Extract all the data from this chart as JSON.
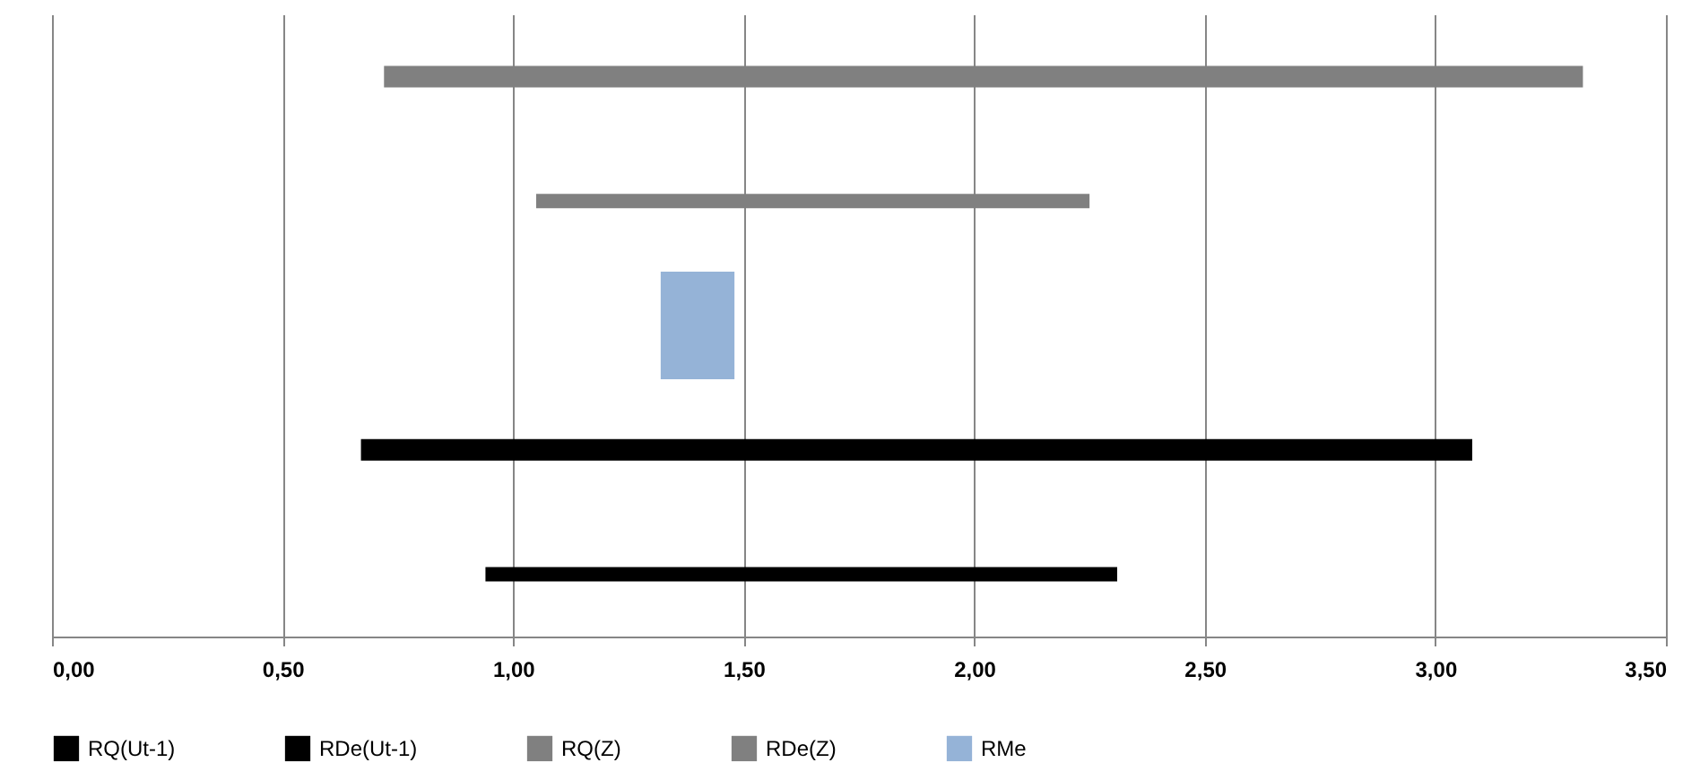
{
  "chart_data": {
    "type": "bar",
    "orientation": "horizontal",
    "categories": [
      null,
      null,
      null,
      null,
      null
    ],
    "series": [
      {
        "name": "RQ(Ut-1)",
        "color": "#000000",
        "values": [
          null,
          null,
          null,
          null,
          1.37
        ],
        "base": [
          null,
          null,
          null,
          null,
          0.94
        ]
      },
      {
        "name": "RDe(Ut-1)",
        "color": "#000000",
        "values": [
          null,
          null,
          null,
          2.41,
          null
        ],
        "base": [
          null,
          null,
          null,
          0.67,
          null
        ]
      },
      {
        "name": "RQ(Z)",
        "color": "#808080",
        "values": [
          null,
          1.2,
          null,
          null,
          null
        ],
        "base": [
          null,
          1.05,
          null,
          null,
          null
        ]
      },
      {
        "name": "RDe(Z)",
        "color": "#808080",
        "values": [
          2.6,
          null,
          null,
          null,
          null
        ],
        "base": [
          0.72,
          null,
          null,
          null,
          null
        ]
      },
      {
        "name": "RMe",
        "color": "#95b3d7",
        "values": [
          null,
          null,
          0.16,
          null,
          null
        ],
        "base": [
          null,
          null,
          1.32,
          null,
          null
        ]
      }
    ],
    "xlim": [
      0,
      3.5
    ],
    "xticks": [
      {
        "value": 0,
        "label": "0,00"
      },
      {
        "value": 0.5,
        "label": "0,50"
      },
      {
        "value": 1,
        "label": "1,00"
      },
      {
        "value": 1.5,
        "label": "1,50"
      },
      {
        "value": 2,
        "label": "2,00"
      },
      {
        "value": 2.5,
        "label": "2,50"
      },
      {
        "value": 3,
        "label": "3,00"
      },
      {
        "value": 3.5,
        "label": "3,50"
      }
    ],
    "grid": "x",
    "legend": "bottom"
  }
}
